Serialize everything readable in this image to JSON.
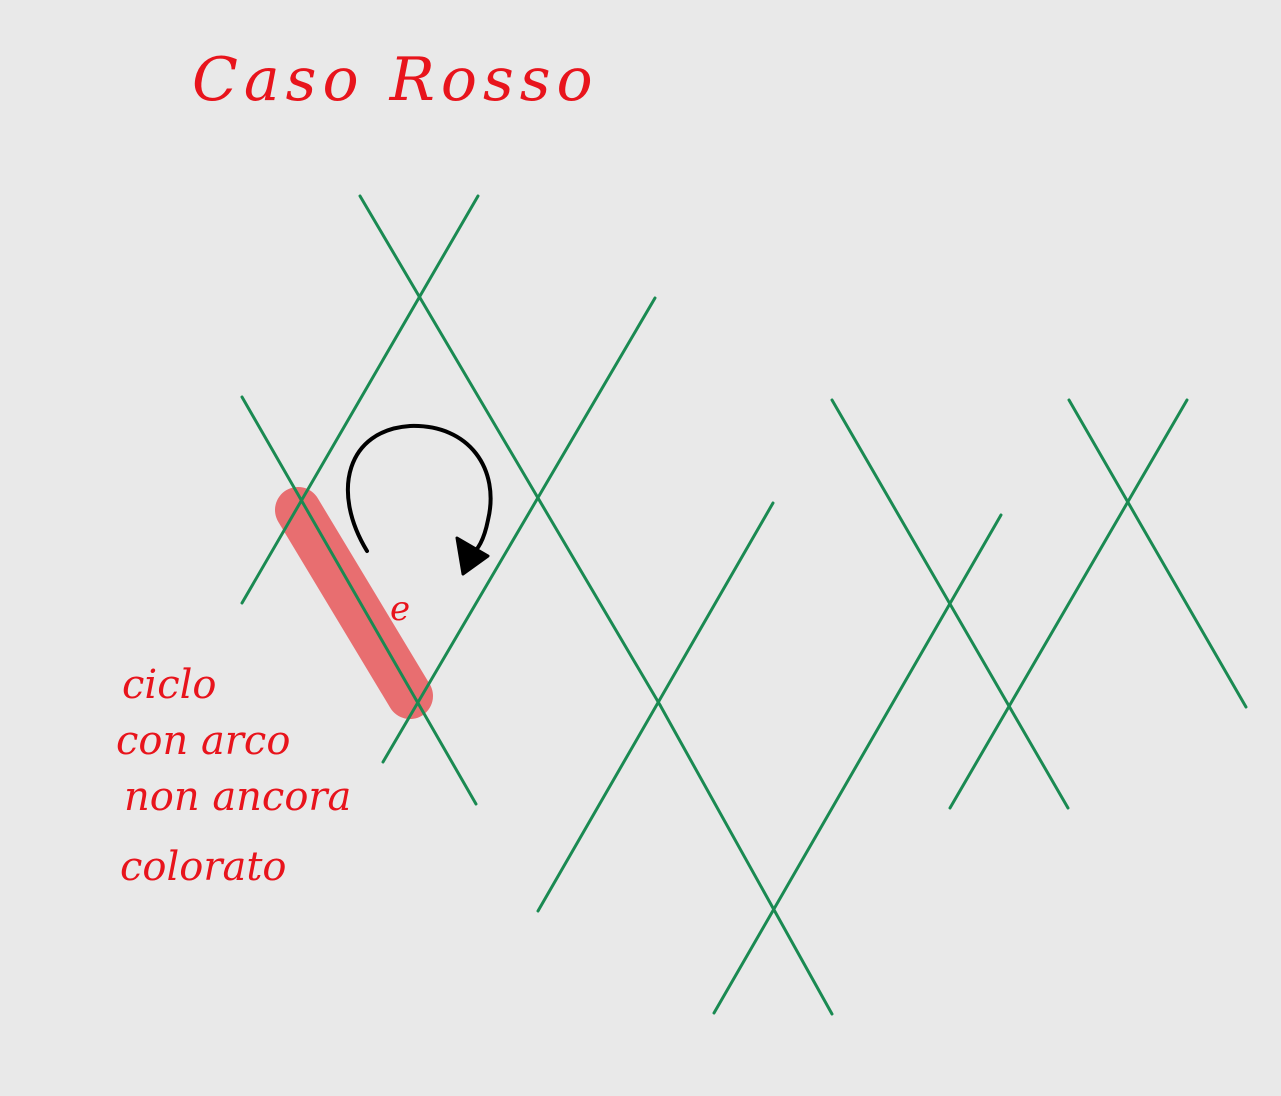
{
  "title": "Caso Rosso",
  "edge_label": "e",
  "note_lines": [
    "ciclo",
    "con arco",
    "non ancora",
    "colorato"
  ],
  "colors": {
    "background": "#e9e9e9",
    "lines": "#1a8a52",
    "ink_red": "#e8141c",
    "highlight": "#e8585a",
    "arrow": "#000000"
  }
}
